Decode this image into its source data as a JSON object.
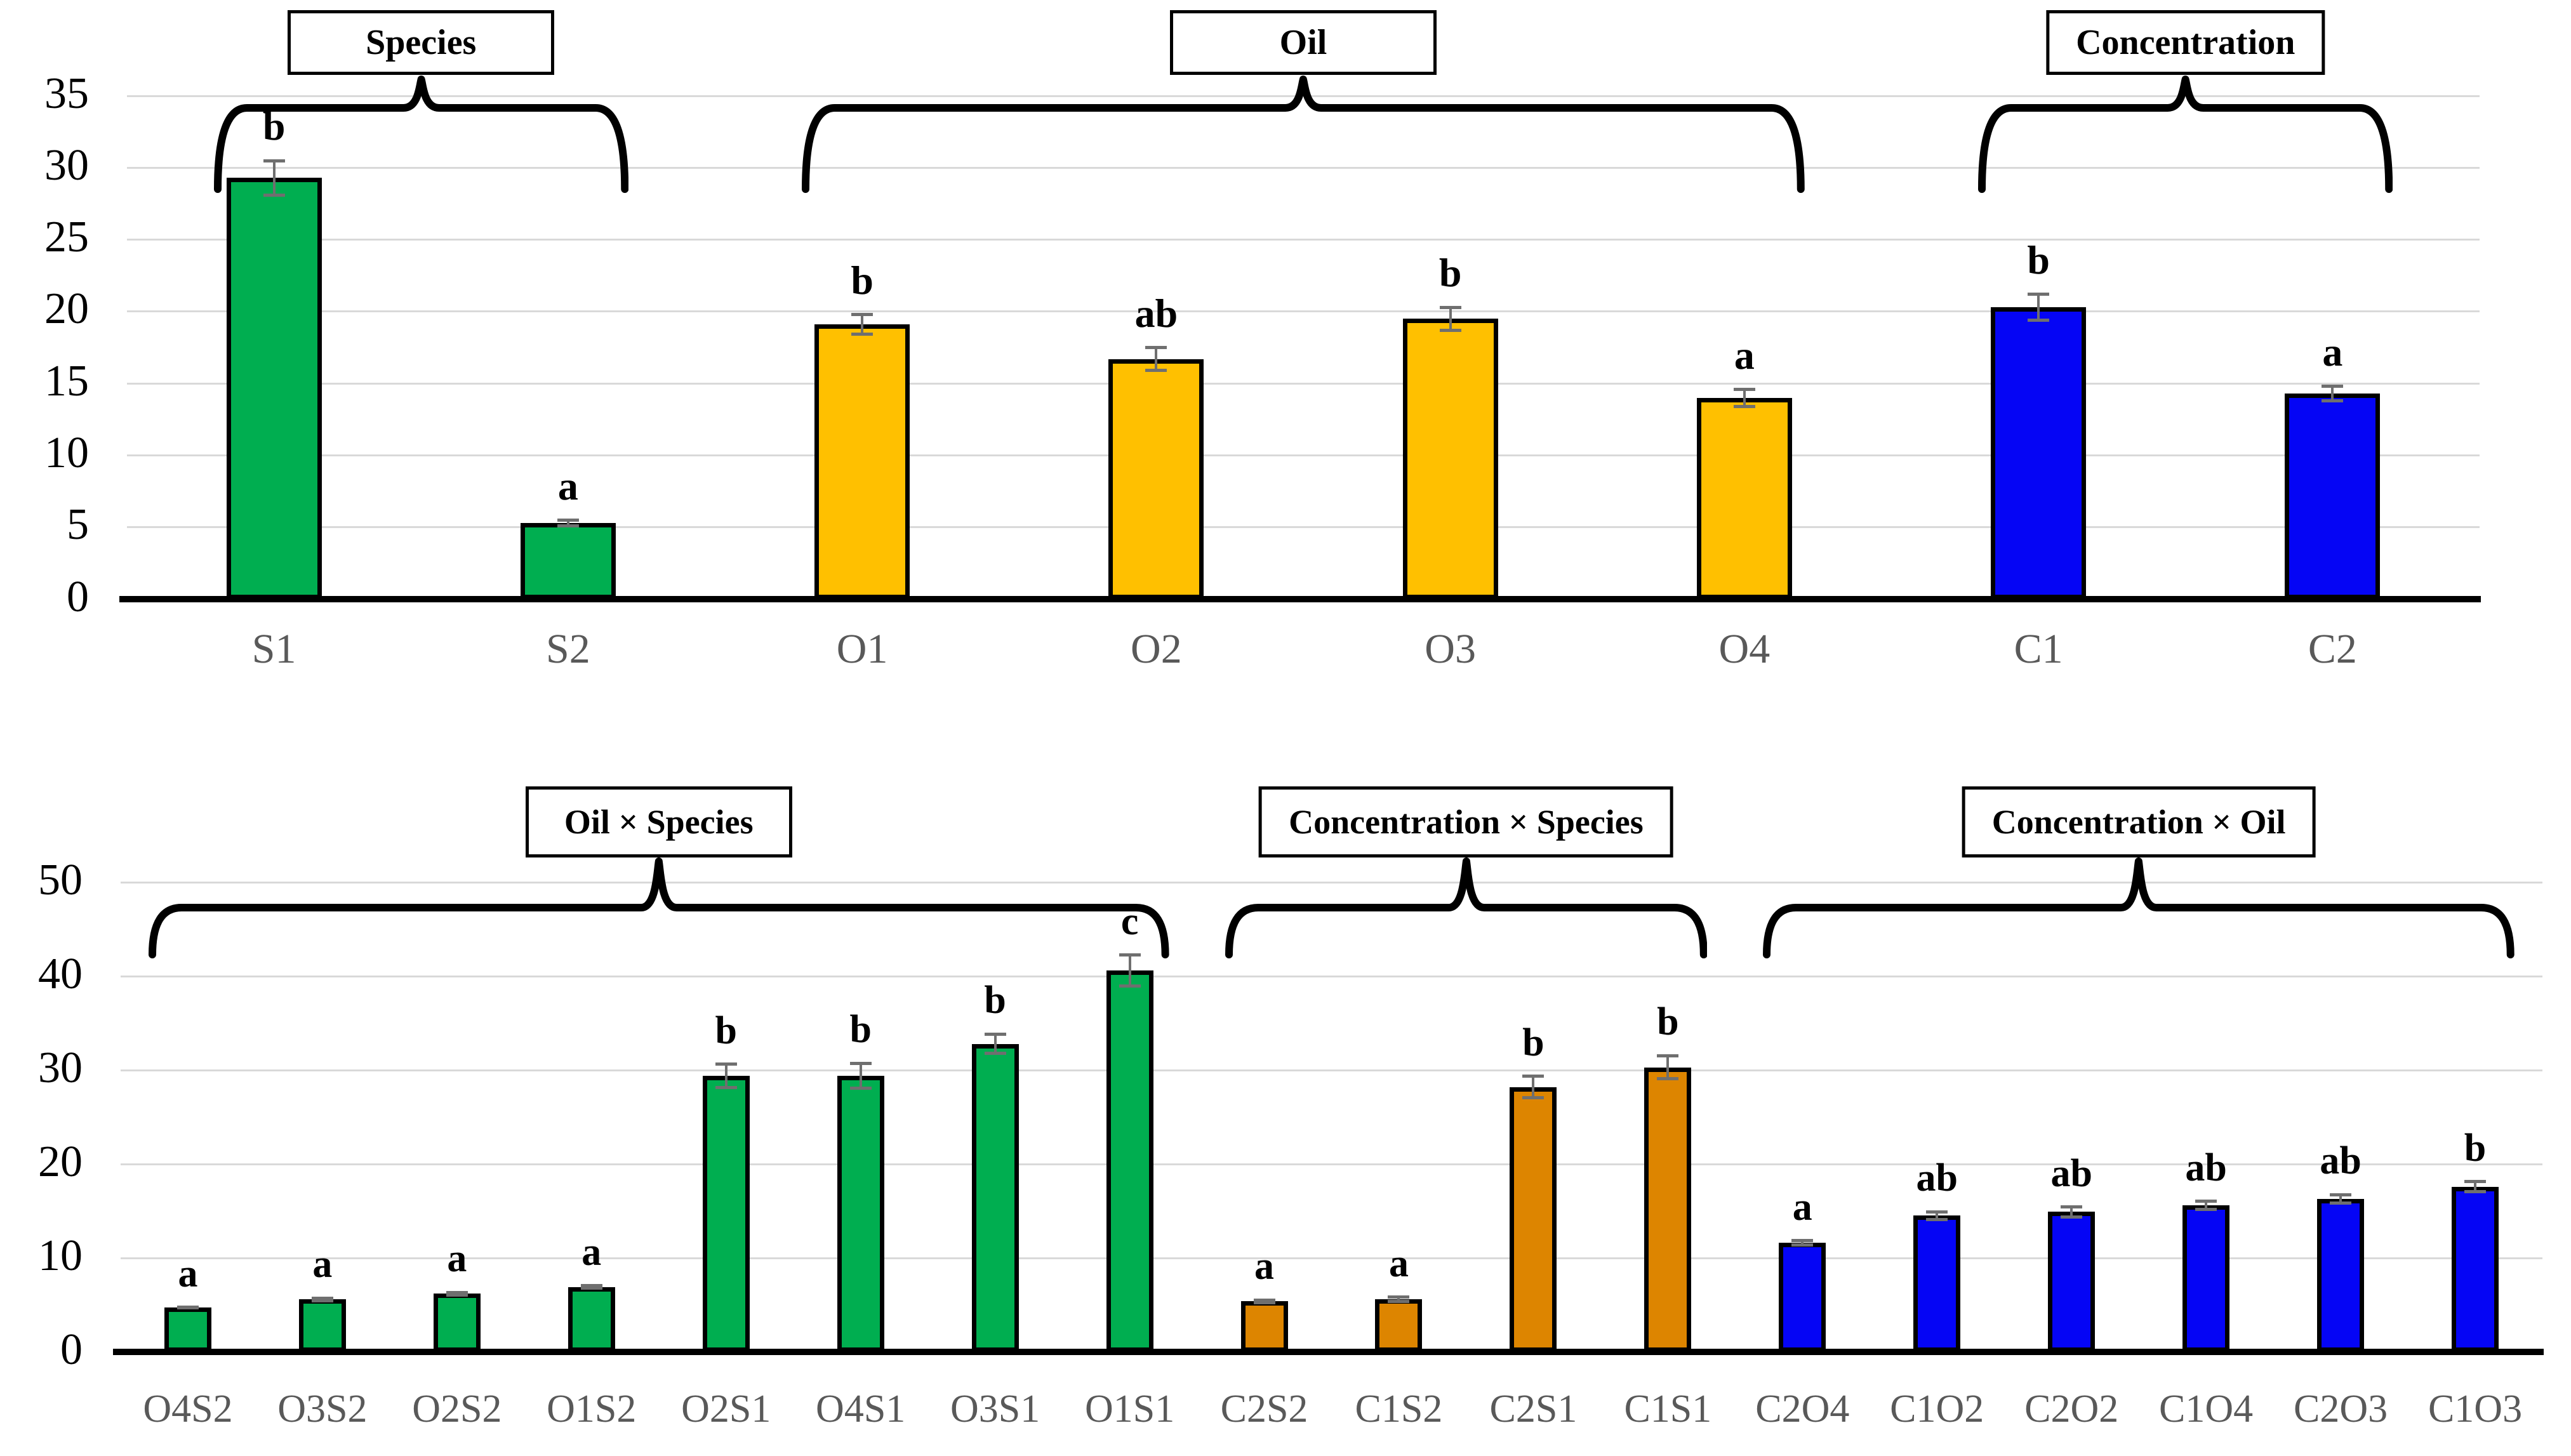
{
  "figure": {
    "background": "#FFFFFF"
  },
  "colors": {
    "species_green": "#00AE50",
    "oil_yellow": "#FFC000",
    "concentration_blue": "#0505F5",
    "interaction_orange": "#DD8500",
    "gridline": "#D9D9D9",
    "axis": "#000000",
    "bar_border": "#000000",
    "error_bar": "#6F6F6F",
    "ytick_label": "#000000",
    "xtick_label": "#595959",
    "group_box_border": "#000000",
    "group_box_fill": "#FFFFFF"
  },
  "chart_data": [
    {
      "type": "bar",
      "panel": "top",
      "title": "",
      "xlabel": "",
      "ylabel": "",
      "ylim": [
        0,
        35
      ],
      "yticks": [
        0,
        5,
        10,
        15,
        20,
        25,
        30,
        35
      ],
      "grid": true,
      "legend_position": "none",
      "categories": [
        "S1",
        "S2",
        "O1",
        "O2",
        "O3",
        "O4",
        "C1",
        "C2"
      ],
      "values": [
        29.3,
        5.3,
        19.1,
        16.7,
        19.5,
        14.0,
        20.3,
        14.3
      ],
      "errors": [
        1.3,
        0.3,
        0.8,
        0.9,
        0.9,
        0.7,
        1.0,
        0.6
      ],
      "sig_letters": [
        "b",
        "a",
        "b",
        "ab",
        "b",
        "a",
        "b",
        "a"
      ],
      "bar_color_keys": [
        "species_green",
        "species_green",
        "oil_yellow",
        "oil_yellow",
        "oil_yellow",
        "oil_yellow",
        "concentration_blue",
        "concentration_blue"
      ],
      "groups": [
        {
          "label": "Species",
          "from": "S1",
          "to": "S2"
        },
        {
          "label": "Oil",
          "from": "O1",
          "to": "O4"
        },
        {
          "label": "Concentration",
          "from": "C1",
          "to": "C2"
        }
      ]
    },
    {
      "type": "bar",
      "panel": "bottom",
      "title": "",
      "xlabel": "",
      "ylabel": "",
      "ylim": [
        0,
        50
      ],
      "yticks": [
        0,
        10,
        20,
        30,
        40,
        50
      ],
      "grid": true,
      "legend_position": "none",
      "categories": [
        "O4S2",
        "O3S2",
        "O2S2",
        "O1S2",
        "O2S1",
        "O4S1",
        "O3S1",
        "O1S1",
        "C2S2",
        "C1S2",
        "C2S1",
        "C1S1",
        "C2O4",
        "C1O2",
        "C2O2",
        "C1O4",
        "C2O3",
        "C1O3"
      ],
      "values": [
        4.7,
        5.6,
        6.2,
        6.9,
        29.4,
        29.4,
        32.8,
        40.6,
        5.4,
        5.6,
        28.2,
        30.3,
        11.6,
        14.5,
        14.9,
        15.6,
        16.3,
        17.6
      ],
      "errors": [
        0.2,
        0.3,
        0.3,
        0.3,
        1.4,
        1.5,
        1.2,
        1.8,
        0.3,
        0.4,
        1.3,
        1.4,
        0.4,
        0.6,
        0.7,
        0.6,
        0.6,
        0.7
      ],
      "sig_letters": [
        "a",
        "a",
        "a",
        "a",
        "b",
        "b",
        "b",
        "c",
        "a",
        "a",
        "b",
        "b",
        "a",
        "ab",
        "ab",
        "ab",
        "ab",
        "b"
      ],
      "bar_color_keys": [
        "species_green",
        "species_green",
        "species_green",
        "species_green",
        "species_green",
        "species_green",
        "species_green",
        "species_green",
        "interaction_orange",
        "interaction_orange",
        "interaction_orange",
        "interaction_orange",
        "concentration_blue",
        "concentration_blue",
        "concentration_blue",
        "concentration_blue",
        "concentration_blue",
        "concentration_blue"
      ],
      "groups": [
        {
          "label": "Oil × Species",
          "from": "O4S2",
          "to": "O1S1"
        },
        {
          "label": "Concentration × Species",
          "from": "C2S2",
          "to": "C1S1"
        },
        {
          "label": "Concentration × Oil",
          "from": "C2O4",
          "to": "C1O3"
        }
      ]
    }
  ]
}
